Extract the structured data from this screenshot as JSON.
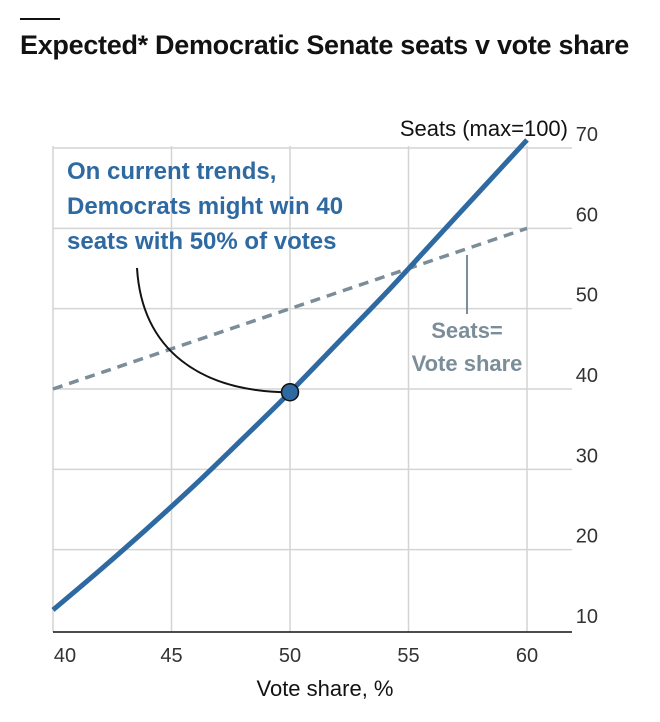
{
  "title": "Expected* Democratic Senate seats v vote share",
  "colors": {
    "expected_line": "#2e6aa1",
    "parity_line": "#7a8d99",
    "marker_fill": "#2e6aa1",
    "leader": "#121212"
  },
  "chart_data": {
    "type": "line",
    "title": "Expected* Democratic Senate seats v vote share",
    "xlabel": "Vote share, %",
    "ylabel": "Seats (max=100)",
    "xlim": [
      38.5,
      61.5
    ],
    "ylim": [
      9,
      71
    ],
    "x_ticks": [
      40,
      45,
      50,
      55,
      60
    ],
    "y_ticks": [
      10,
      20,
      30,
      40,
      50,
      60,
      70
    ],
    "grid": true,
    "series": [
      {
        "style": "solid",
        "x": [
          40,
          42,
          44,
          46,
          48,
          50,
          52,
          54,
          56,
          58,
          60
        ],
        "y": [
          12.5,
          17.5,
          22.7,
          28.1,
          33.8,
          39.6,
          45.7,
          51.8,
          58.2,
          64.6,
          71.0
        ]
      },
      {
        "name": "Seats= Vote share",
        "style": "dashed",
        "x": [
          40,
          60
        ],
        "y": [
          40,
          60
        ]
      }
    ],
    "highlight_point": {
      "x": 50,
      "y": 39.6
    },
    "annotations": {
      "callout_lines": [
        "On current trends,",
        "Democrats might win 40",
        "seats with 50% of votes"
      ],
      "parity_lines": [
        "Seats=",
        "Vote share"
      ]
    }
  }
}
